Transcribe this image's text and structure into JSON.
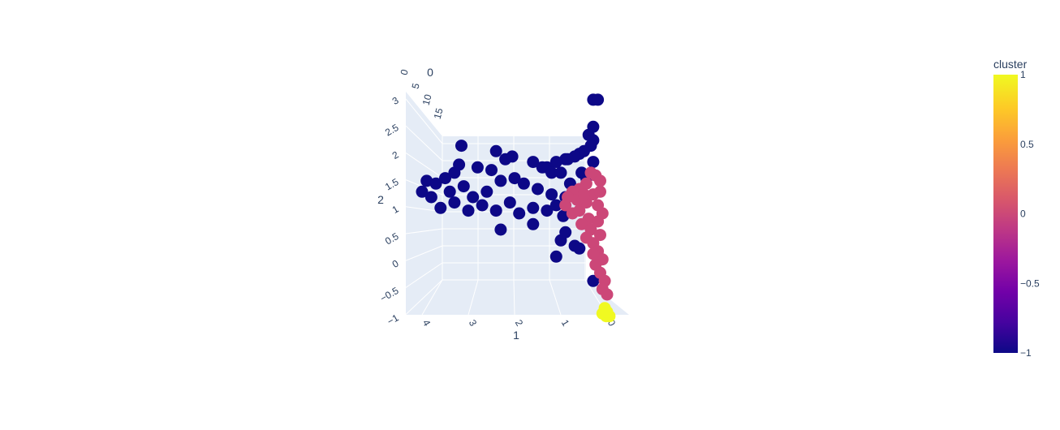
{
  "chart_data": {
    "type": "scatter3d",
    "axes": {
      "x": {
        "title": "0",
        "ticks": [
          "0",
          "5",
          "10",
          "15"
        ]
      },
      "y": {
        "title": "1",
        "ticks": [
          "4",
          "3",
          "2",
          "1",
          "0"
        ]
      },
      "z": {
        "title": "2",
        "ticks": [
          "3",
          "2.5",
          "2",
          "1.5",
          "1",
          "0.5",
          "0",
          "−0.5",
          "−1"
        ]
      }
    },
    "colorbar": {
      "title": "cluster",
      "ticks": [
        "1",
        "0.5",
        "0",
        "−0.5",
        "−1"
      ],
      "range": [
        -1,
        1
      ],
      "colorscale": [
        "#0d0887",
        "#46039f",
        "#7201a8",
        "#9c179e",
        "#bd3786",
        "#d8576b",
        "#ed7953",
        "#fb9f3a",
        "#fdca26",
        "#f0f921"
      ]
    },
    "series": [
      {
        "cluster": -1,
        "color": "#0d0887",
        "points": [
          [
            0,
            0.3,
            3
          ],
          [
            0,
            0.2,
            3
          ],
          [
            0,
            0.3,
            2.5
          ],
          [
            0,
            0.4,
            2.35
          ],
          [
            0,
            0.3,
            2.25
          ],
          [
            0,
            0.35,
            2.15
          ],
          [
            0,
            0.5,
            2.05
          ],
          [
            0,
            0.6,
            2
          ],
          [
            0,
            0.9,
            1.9
          ],
          [
            0,
            0.7,
            1.95
          ],
          [
            0,
            1.1,
            1.85
          ],
          [
            0,
            1.3,
            1.75
          ],
          [
            0,
            0.3,
            1.85
          ],
          [
            0,
            4.0,
            1.3
          ],
          [
            0,
            3.9,
            1.5
          ],
          [
            0,
            3.7,
            1.45
          ],
          [
            0,
            3.8,
            1.2
          ],
          [
            0,
            3.5,
            1.55
          ],
          [
            0,
            3.3,
            1.65
          ],
          [
            0,
            3.2,
            1.8
          ],
          [
            0,
            2.8,
            1.75
          ],
          [
            0,
            2.5,
            1.7
          ],
          [
            0,
            2.2,
            1.9
          ],
          [
            0,
            1.6,
            1.85
          ],
          [
            0,
            1.4,
            1.75
          ],
          [
            0,
            1.2,
            1.65
          ],
          [
            0,
            1.0,
            1.65
          ],
          [
            0,
            3.4,
            1.3
          ],
          [
            0,
            3.1,
            1.4
          ],
          [
            0,
            2.9,
            1.2
          ],
          [
            0,
            2.6,
            1.3
          ],
          [
            0,
            2.3,
            1.5
          ],
          [
            0,
            2.0,
            1.55
          ],
          [
            0,
            1.8,
            1.45
          ],
          [
            0,
            1.5,
            1.35
          ],
          [
            0,
            1.2,
            1.25
          ],
          [
            0,
            0.9,
            1.2
          ],
          [
            0,
            0.8,
            1.45
          ],
          [
            0,
            0.6,
            1.3
          ],
          [
            0,
            3.6,
            1.0
          ],
          [
            0,
            3.3,
            1.1
          ],
          [
            0,
            3.0,
            0.95
          ],
          [
            0,
            2.7,
            1.05
          ],
          [
            0,
            2.4,
            0.95
          ],
          [
            0,
            2.1,
            1.1
          ],
          [
            0,
            1.9,
            0.9
          ],
          [
            0,
            1.6,
            1.0
          ],
          [
            0,
            1.3,
            0.95
          ],
          [
            0,
            1.1,
            1.05
          ],
          [
            0,
            0.95,
            0.85
          ],
          [
            0,
            2.3,
            0.6
          ],
          [
            0,
            1.6,
            0.7
          ],
          [
            0,
            1.0,
            0.4
          ],
          [
            0,
            0.9,
            0.55
          ],
          [
            0,
            0.7,
            0.3
          ],
          [
            0,
            0.6,
            0.25
          ],
          [
            0,
            1.1,
            0.1
          ],
          [
            0,
            0.3,
            -0.35
          ],
          [
            0,
            3.15,
            2.15
          ],
          [
            0,
            2.4,
            2.05
          ],
          [
            0,
            2.05,
            1.95
          ],
          [
            0,
            0.85,
            1.9
          ],
          [
            0,
            0.55,
            1.65
          ],
          [
            0,
            0.45,
            1.55
          ]
        ]
      },
      {
        "cluster": 0,
        "color": "#cc4778",
        "points": [
          [
            0,
            0.35,
            1.65
          ],
          [
            0,
            0.25,
            1.6
          ],
          [
            0,
            0.15,
            1.5
          ],
          [
            0,
            0.45,
            1.45
          ],
          [
            0,
            0.6,
            1.35
          ],
          [
            0,
            0.75,
            1.3
          ],
          [
            0,
            0.85,
            1.2
          ],
          [
            0,
            0.9,
            1.05
          ],
          [
            0,
            0.75,
            0.9
          ],
          [
            0,
            0.6,
            0.95
          ],
          [
            0,
            0.45,
            1.1
          ],
          [
            0,
            0.3,
            1.25
          ],
          [
            0,
            0.15,
            1.3
          ],
          [
            0,
            0.2,
            1.05
          ],
          [
            0,
            0.4,
            0.8
          ],
          [
            0,
            0.55,
            0.7
          ],
          [
            0,
            0.35,
            0.6
          ],
          [
            0,
            0.2,
            0.75
          ],
          [
            0,
            0.1,
            0.9
          ],
          [
            0,
            0.15,
            0.5
          ],
          [
            0,
            0.3,
            0.35
          ],
          [
            0,
            0.2,
            0.2
          ],
          [
            0,
            0.1,
            0.05
          ],
          [
            0,
            0.25,
            -0.05
          ],
          [
            0,
            0.15,
            -0.2
          ],
          [
            0,
            0.05,
            -0.35
          ],
          [
            0,
            0.1,
            -0.5
          ],
          [
            0,
            0.0,
            -0.6
          ],
          [
            0,
            0.3,
            0.15
          ],
          [
            0,
            0.45,
            0.45
          ],
          [
            0,
            0.65,
            1.15
          ],
          [
            0,
            0.5,
            1.25
          ]
        ]
      },
      {
        "cluster": 1,
        "color": "#f0f921",
        "points": [
          [
            0,
            0.05,
            -0.85
          ],
          [
            0,
            0.02,
            -1.0
          ],
          [
            0,
            -0.05,
            -1.0
          ],
          [
            0,
            0.1,
            -0.95
          ],
          [
            0,
            0.0,
            -0.92
          ]
        ]
      }
    ]
  }
}
